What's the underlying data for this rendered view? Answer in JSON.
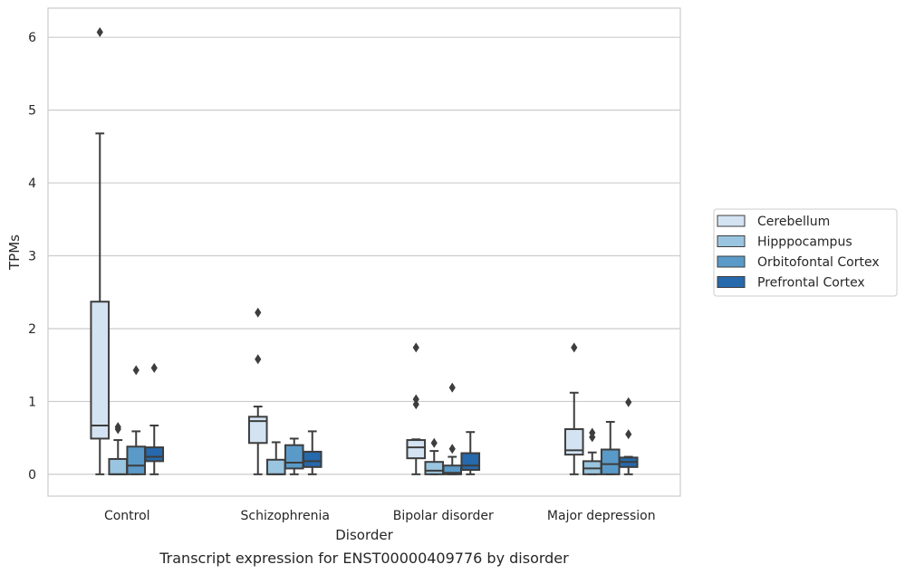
{
  "chart_data": {
    "type": "box",
    "xlabel": "Disorder",
    "ylabel": "TPMs",
    "caption": "Transcript expression for ENST00000409776 by disorder",
    "ylim": [
      -0.3,
      6.4
    ],
    "yticks": [
      0,
      1,
      2,
      3,
      4,
      5,
      6
    ],
    "grid": "horizontal",
    "legend_position": "right",
    "categories": [
      "Control",
      "Schizophrenia",
      "Bipolar disorder",
      "Major depression"
    ],
    "series": [
      {
        "name": "Cerebellum",
        "color": "#d3e3f2",
        "boxes": [
          {
            "whisker_low": 0,
            "q1": 0.49,
            "median": 0.67,
            "q3": 2.37,
            "whisker_high": 4.68,
            "outliers": [
              6.07
            ]
          },
          {
            "whisker_low": 0,
            "q1": 0.43,
            "median": 0.73,
            "q3": 0.79,
            "whisker_high": 0.93,
            "outliers": [
              1.58,
              2.22
            ]
          },
          {
            "whisker_low": 0,
            "q1": 0.22,
            "median": 0.37,
            "q3": 0.47,
            "whisker_high": 0.48,
            "outliers": [
              0.96,
              1.03,
              1.74
            ]
          },
          {
            "whisker_low": 0,
            "q1": 0.27,
            "median": 0.33,
            "q3": 0.62,
            "whisker_high": 1.12,
            "outliers": [
              1.74
            ]
          }
        ]
      },
      {
        "name": "Hipppocampus",
        "color": "#9ac5e0",
        "boxes": [
          {
            "whisker_low": 0,
            "q1": 0,
            "median": 0,
            "q3": 0.21,
            "whisker_high": 0.47,
            "outliers": [
              0.62,
              0.65
            ]
          },
          {
            "whisker_low": 0,
            "q1": 0,
            "median": 0,
            "q3": 0.2,
            "whisker_high": 0.44,
            "outliers": []
          },
          {
            "whisker_low": 0,
            "q1": 0,
            "median": 0.05,
            "q3": 0.17,
            "whisker_high": 0.32,
            "outliers": [
              0.43
            ]
          },
          {
            "whisker_low": 0,
            "q1": 0,
            "median": 0.08,
            "q3": 0.18,
            "whisker_high": 0.3,
            "outliers": [
              0.51,
              0.57
            ]
          }
        ]
      },
      {
        "name": "Orbitofontal Cortex",
        "color": "#5a9ac8",
        "boxes": [
          {
            "whisker_low": 0,
            "q1": 0,
            "median": 0.12,
            "q3": 0.38,
            "whisker_high": 0.59,
            "outliers": [
              1.43
            ]
          },
          {
            "whisker_low": 0,
            "q1": 0.08,
            "median": 0.16,
            "q3": 0.4,
            "whisker_high": 0.49,
            "outliers": []
          },
          {
            "whisker_low": 0,
            "q1": 0,
            "median": 0.02,
            "q3": 0.12,
            "whisker_high": 0.24,
            "outliers": [
              0.35,
              1.19
            ]
          },
          {
            "whisker_low": 0,
            "q1": 0,
            "median": 0.14,
            "q3": 0.34,
            "whisker_high": 0.72,
            "outliers": []
          }
        ]
      },
      {
        "name": "Prefrontal Cortex",
        "color": "#2669ac",
        "boxes": [
          {
            "whisker_low": 0,
            "q1": 0.18,
            "median": 0.24,
            "q3": 0.37,
            "whisker_high": 0.67,
            "outliers": [
              1.46
            ]
          },
          {
            "whisker_low": 0,
            "q1": 0.1,
            "median": 0.18,
            "q3": 0.31,
            "whisker_high": 0.59,
            "outliers": []
          },
          {
            "whisker_low": 0,
            "q1": 0.06,
            "median": 0.12,
            "q3": 0.29,
            "whisker_high": 0.58,
            "outliers": []
          },
          {
            "whisker_low": 0,
            "q1": 0.1,
            "median": 0.17,
            "q3": 0.23,
            "whisker_high": 0.24,
            "outliers": [
              0.55,
              0.99
            ]
          }
        ]
      }
    ]
  }
}
